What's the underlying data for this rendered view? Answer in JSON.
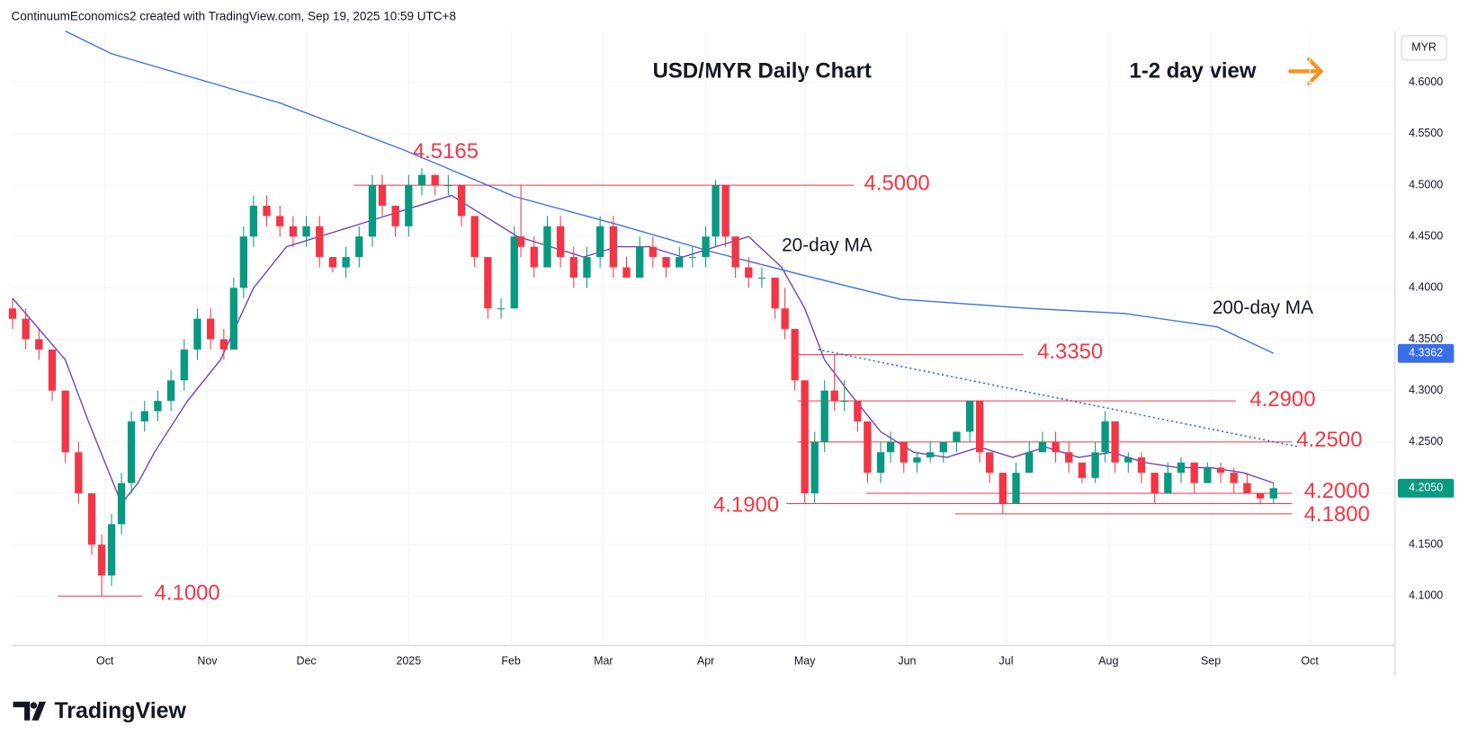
{
  "header": "ContinuumEconomics2 created with TradingView.com, Sep 19, 2025 10:59 UTC+8",
  "brand": "TradingView",
  "chart_data": {
    "type": "candlestick",
    "title": "USD/MYR Daily Chart",
    "view": "1-2 day view",
    "currency": "MYR",
    "grid": true,
    "up_color": "#089981",
    "down_color": "#f23645",
    "xlim": [
      -28.4,
      390.8
    ],
    "ylim": [
      4.0518,
      4.65
    ],
    "xticks": [
      {
        "value": 0,
        "label": "Oct"
      },
      {
        "value": 31,
        "label": "Nov"
      },
      {
        "value": 61,
        "label": "Dec"
      },
      {
        "value": 92,
        "label": "2025"
      },
      {
        "value": 123,
        "label": "Feb"
      },
      {
        "value": 151,
        "label": "Mar"
      },
      {
        "value": 182,
        "label": "Apr"
      },
      {
        "value": 212,
        "label": "May"
      },
      {
        "value": 243,
        "label": "Jun"
      },
      {
        "value": 273,
        "label": "Jul"
      },
      {
        "value": 304,
        "label": "Aug"
      },
      {
        "value": 335,
        "label": "Sep"
      },
      {
        "value": 365,
        "label": "Oct"
      }
    ],
    "yticks": [
      {
        "value": 4.1,
        "label": "4.1000"
      },
      {
        "value": 4.15,
        "label": "4.1500"
      },
      {
        "value": 4.2,
        "label": "4.2000"
      },
      {
        "value": 4.25,
        "label": "4.2500"
      },
      {
        "value": 4.3,
        "label": "4.3000"
      },
      {
        "value": 4.35,
        "label": "4.3500"
      },
      {
        "value": 4.4,
        "label": "4.4000"
      },
      {
        "value": 4.45,
        "label": "4.4500"
      },
      {
        "value": 4.5,
        "label": "4.5000"
      },
      {
        "value": 4.55,
        "label": "4.5500"
      },
      {
        "value": 4.6,
        "label": "4.6000"
      }
    ],
    "candles": {
      "x": [
        -28,
        -24,
        -20,
        -16,
        -12,
        -8,
        -4,
        -1,
        2,
        5,
        8,
        12,
        16,
        20,
        24,
        28,
        32,
        36,
        39,
        42,
        45,
        49,
        53,
        57,
        61,
        65,
        69,
        73,
        77,
        81,
        84,
        88,
        92,
        96,
        100,
        104,
        108,
        112,
        116,
        120,
        124,
        126,
        130,
        134,
        138,
        142,
        146,
        150,
        154,
        158,
        162,
        166,
        170,
        174,
        178,
        182,
        185,
        188,
        191,
        195,
        199,
        203,
        206,
        209,
        212,
        215,
        218,
        221,
        224,
        228,
        231,
        235,
        238,
        242,
        246,
        250,
        254,
        258,
        262,
        265,
        268,
        272,
        276,
        280,
        284,
        288,
        292,
        296,
        300,
        303,
        306,
        310,
        314,
        318,
        322,
        326,
        330,
        334,
        338,
        342,
        346,
        350,
        354
      ],
      "open": [
        4.38,
        4.37,
        4.35,
        4.34,
        4.3,
        4.24,
        4.2,
        4.15,
        4.12,
        4.17,
        4.21,
        4.27,
        4.28,
        4.29,
        4.31,
        4.34,
        4.37,
        4.35,
        4.34,
        4.4,
        4.45,
        4.48,
        4.47,
        4.46,
        4.45,
        4.46,
        4.43,
        4.42,
        4.43,
        4.45,
        4.5,
        4.48,
        4.46,
        4.5,
        4.51,
        4.5,
        4.5,
        4.47,
        4.43,
        4.38,
        4.38,
        4.45,
        4.44,
        4.42,
        4.46,
        4.43,
        4.41,
        4.43,
        4.46,
        4.42,
        4.41,
        4.44,
        4.43,
        4.42,
        4.43,
        4.43,
        4.45,
        4.5,
        4.45,
        4.42,
        4.41,
        4.41,
        4.38,
        4.36,
        4.31,
        4.2,
        4.25,
        4.3,
        4.29,
        4.29,
        4.27,
        4.22,
        4.24,
        4.25,
        4.23,
        4.235,
        4.24,
        4.25,
        4.26,
        4.29,
        4.24,
        4.22,
        4.19,
        4.22,
        4.24,
        4.25,
        4.24,
        4.23,
        4.215,
        4.24,
        4.27,
        4.23,
        4.235,
        4.22,
        4.2,
        4.22,
        4.23,
        4.21,
        4.225,
        4.22,
        4.21,
        4.2,
        4.195
      ],
      "high": [
        4.39,
        4.38,
        4.36,
        4.34,
        4.3,
        4.25,
        4.2,
        4.16,
        4.18,
        4.22,
        4.28,
        4.29,
        4.3,
        4.32,
        4.35,
        4.38,
        4.38,
        4.36,
        4.41,
        4.46,
        4.49,
        4.49,
        4.48,
        4.47,
        4.47,
        4.47,
        4.43,
        4.44,
        4.46,
        4.51,
        4.51,
        4.48,
        4.51,
        4.5165,
        4.51,
        4.51,
        4.5,
        4.47,
        4.43,
        4.39,
        4.46,
        4.5,
        4.45,
        4.47,
        4.47,
        4.44,
        4.44,
        4.47,
        4.47,
        4.43,
        4.45,
        4.45,
        4.43,
        4.44,
        4.44,
        4.46,
        4.505,
        4.5,
        4.45,
        4.43,
        4.42,
        4.41,
        4.4,
        4.36,
        4.31,
        4.26,
        4.31,
        4.335,
        4.31,
        4.29,
        4.27,
        4.25,
        4.26,
        4.25,
        4.24,
        4.25,
        4.25,
        4.26,
        4.29,
        4.29,
        4.24,
        4.22,
        4.23,
        4.25,
        4.26,
        4.26,
        4.25,
        4.23,
        4.25,
        4.28,
        4.27,
        4.24,
        4.24,
        4.22,
        4.23,
        4.235,
        4.23,
        4.23,
        4.23,
        4.225,
        4.22,
        4.2,
        4.21
      ],
      "low": [
        4.36,
        4.34,
        4.33,
        4.29,
        4.23,
        4.19,
        4.14,
        4.1,
        4.11,
        4.16,
        4.2,
        4.26,
        4.27,
        4.28,
        4.3,
        4.33,
        4.34,
        4.33,
        4.34,
        4.39,
        4.44,
        4.46,
        4.45,
        4.44,
        4.44,
        4.42,
        4.415,
        4.41,
        4.42,
        4.44,
        4.47,
        4.45,
        4.45,
        4.49,
        4.49,
        4.49,
        4.46,
        4.42,
        4.37,
        4.37,
        4.38,
        4.43,
        4.41,
        4.42,
        4.42,
        4.4,
        4.4,
        4.42,
        4.41,
        4.41,
        4.41,
        4.42,
        4.41,
        4.42,
        4.42,
        4.42,
        4.44,
        4.44,
        4.41,
        4.4,
        4.4,
        4.37,
        4.35,
        4.3,
        4.19,
        4.19,
        4.24,
        4.28,
        4.28,
        4.26,
        4.21,
        4.21,
        4.23,
        4.22,
        4.22,
        4.23,
        4.23,
        4.24,
        4.25,
        4.23,
        4.21,
        4.18,
        4.19,
        4.22,
        4.24,
        4.23,
        4.22,
        4.21,
        4.21,
        4.23,
        4.22,
        4.22,
        4.21,
        4.19,
        4.2,
        4.21,
        4.2,
        4.21,
        4.21,
        4.2,
        4.2,
        4.19,
        4.19
      ],
      "close": [
        4.37,
        4.35,
        4.34,
        4.3,
        4.24,
        4.2,
        4.15,
        4.12,
        4.17,
        4.21,
        4.27,
        4.28,
        4.29,
        4.31,
        4.34,
        4.37,
        4.35,
        4.34,
        4.4,
        4.45,
        4.48,
        4.47,
        4.46,
        4.45,
        4.46,
        4.43,
        4.42,
        4.43,
        4.45,
        4.5,
        4.48,
        4.46,
        4.5,
        4.51,
        4.5,
        4.5,
        4.47,
        4.43,
        4.38,
        4.38,
        4.45,
        4.44,
        4.42,
        4.46,
        4.43,
        4.41,
        4.43,
        4.46,
        4.42,
        4.41,
        4.44,
        4.43,
        4.42,
        4.43,
        4.43,
        4.45,
        4.5,
        4.45,
        4.42,
        4.41,
        4.41,
        4.38,
        4.36,
        4.31,
        4.2,
        4.25,
        4.3,
        4.29,
        4.29,
        4.27,
        4.22,
        4.24,
        4.25,
        4.23,
        4.235,
        4.24,
        4.25,
        4.26,
        4.29,
        4.24,
        4.22,
        4.19,
        4.22,
        4.24,
        4.25,
        4.24,
        4.23,
        4.215,
        4.24,
        4.27,
        4.23,
        4.235,
        4.22,
        4.2,
        4.22,
        4.23,
        4.21,
        4.225,
        4.22,
        4.21,
        4.2,
        4.195,
        4.205
      ]
    },
    "series": [
      {
        "name": "20-day MA",
        "color": "#6a3dc4",
        "x": [
          -28,
          -20,
          -12,
          -5,
          0,
          5,
          10,
          15,
          25,
          35,
          45,
          55,
          65,
          75,
          85,
          95,
          105,
          115,
          125,
          135,
          145,
          155,
          165,
          175,
          185,
          195,
          205,
          212,
          218,
          225,
          235,
          245,
          255,
          265,
          275,
          285,
          295,
          305,
          315,
          325,
          335,
          345,
          354
        ],
        "values": [
          4.39,
          4.36,
          4.33,
          4.27,
          4.23,
          4.19,
          4.21,
          4.24,
          4.29,
          4.33,
          4.4,
          4.44,
          4.45,
          4.46,
          4.47,
          4.48,
          4.49,
          4.47,
          4.45,
          4.44,
          4.43,
          4.44,
          4.44,
          4.43,
          4.44,
          4.45,
          4.42,
          4.38,
          4.33,
          4.3,
          4.26,
          4.24,
          4.235,
          4.245,
          4.235,
          4.245,
          4.235,
          4.24,
          4.23,
          4.225,
          4.225,
          4.22,
          4.21
        ]
      },
      {
        "name": "200-day MA",
        "color": "#3a6ee8",
        "x": [
          -12,
          2,
          53,
          90,
          124,
          155,
          184,
          212,
          241,
          280,
          309,
          337,
          354
        ],
        "values": [
          4.65,
          4.628,
          4.58,
          4.535,
          4.489,
          4.462,
          4.435,
          4.412,
          4.389,
          4.38,
          4.375,
          4.362,
          4.3362
        ]
      }
    ],
    "trendline": {
      "x": [
        216,
        362
      ],
      "values": [
        4.34,
        4.245
      ],
      "color": "#2962ff"
    },
    "levels": [
      {
        "value": 4.5165,
        "label": "4.5165"
      },
      {
        "value": 4.5,
        "label": "4.5000"
      },
      {
        "value": 4.335,
        "label": "4.3350"
      },
      {
        "value": 4.29,
        "label": "4.2900"
      },
      {
        "value": 4.25,
        "label": "4.2500"
      },
      {
        "value": 4.2,
        "label": "4.2000"
      },
      {
        "value": 4.19,
        "label": "4.1900"
      },
      {
        "value": 4.18,
        "label": "4.1800"
      },
      {
        "value": 4.1,
        "label": "4.1000"
      }
    ],
    "level_color": "#f23645",
    "last_price": {
      "value": 4.205,
      "label": "4.2050"
    },
    "ma200_last": {
      "value": 4.3362,
      "label": "4.3362"
    }
  }
}
